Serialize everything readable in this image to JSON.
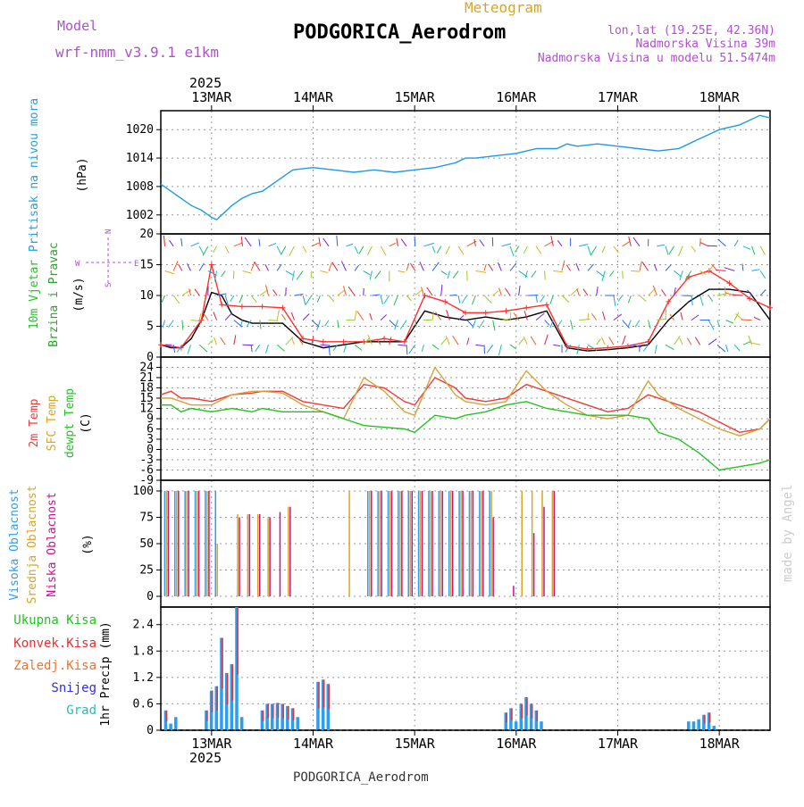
{
  "header": {
    "model_label": "Model",
    "model_name": "wrf-nmm_v3.9.1 e1km",
    "meteogram_label": "Meteogram",
    "station": "PODGORICA_Aerodrom",
    "coords": "lon,lat (19.25E, 42.36N)",
    "elevation": "Nadmorska Visina 39m",
    "model_elevation": "Nadmorska Visina u modelu 51.5474m",
    "year": "2025",
    "footer_station": "PODGORICA_Aerodrom",
    "watermark": "made by Angel"
  },
  "colors": {
    "pressure": "#1e9be0",
    "wind_speed": "#000000",
    "gust": "#ff3030",
    "t2m": "#ee3b3b",
    "sfc": "#d8a23a",
    "dewpt": "#22c422",
    "high_cloud": "#2a9df4",
    "mid_cloud": "#daa520",
    "low_cloud": "#cc1090",
    "total_precip": "#2eb82e",
    "conv_precip": "#e83030",
    "frz_precip": "#f07030",
    "snow": "#3030e0",
    "grad": "#20c0c0",
    "label_pressure": "#1ea0e6",
    "label_wind1": "#22c422",
    "label_wind2": "#22aa22",
    "label_model": "#b24fcf"
  },
  "chart_data": [
    {
      "type": "line",
      "panel": "pressure",
      "ylabel_left": "Pritisak na nivou mora",
      "unit": "(hPa)",
      "x_unit": "days since 2025-03-12 12:00",
      "x_ticks": [
        "13MAR",
        "14MAR",
        "15MAR",
        "16MAR",
        "17MAR",
        "18MAR"
      ],
      "ylim": [
        998,
        1024
      ],
      "y_ticks": [
        1002,
        1008,
        1014,
        1020
      ],
      "grid": true,
      "series": [
        {
          "x": [
            0,
            0.1,
            0.2,
            0.3,
            0.4,
            0.5,
            0.55,
            0.6,
            0.7,
            0.8,
            0.9,
            1.0,
            1.1,
            1.2,
            1.3,
            1.5,
            1.7,
            1.9,
            2.1,
            2.3,
            2.5,
            2.7,
            2.9,
            3.0,
            3.1,
            3.3,
            3.5,
            3.7,
            3.9,
            4.0,
            4.1,
            4.3,
            4.5,
            4.7,
            4.9,
            5.1,
            5.3,
            5.4,
            5.5,
            5.7,
            5.9,
            6.0
          ],
          "values": [
            1008.5,
            1007,
            1005.5,
            1004,
            1003,
            1001.5,
            1001,
            1002,
            1004,
            1005.5,
            1006.5,
            1007,
            1008.5,
            1010,
            1011.5,
            1012,
            1011.5,
            1011,
            1011.5,
            1011,
            1011.5,
            1012,
            1013,
            1014,
            1014,
            1014.5,
            1015,
            1016,
            1016,
            1017,
            1016.5,
            1017,
            1016.5,
            1016,
            1015.5,
            1016,
            1018,
            1019,
            1020,
            1021,
            1023,
            1022.5
          ]
        }
      ]
    },
    {
      "type": "line",
      "panel": "wind",
      "ylabel_left": [
        "10m Vjetar",
        "Brzina i Pravac"
      ],
      "unit": "(m/s)",
      "compass": [
        "N",
        "S",
        "E",
        "W"
      ],
      "ylim": [
        0,
        20
      ],
      "y_ticks": [
        0,
        5,
        10,
        15,
        20
      ],
      "grid": true,
      "series": [
        {
          "name": "speed",
          "x": [
            0,
            0.1,
            0.2,
            0.3,
            0.4,
            0.5,
            0.6,
            0.7,
            0.8,
            0.9,
            1.0,
            1.2,
            1.4,
            1.6,
            1.8,
            2.0,
            2.2,
            2.4,
            2.6,
            2.8,
            3.0,
            3.2,
            3.4,
            3.6,
            3.8,
            4.0,
            4.2,
            4.4,
            4.6,
            4.8,
            5.0,
            5.2,
            5.4,
            5.6,
            5.8,
            6.0
          ],
          "values": [
            2,
            1.5,
            1.5,
            3,
            6,
            10.5,
            10,
            7,
            6,
            5.5,
            5.5,
            5.5,
            2.5,
            1.5,
            2,
            2.5,
            2.5,
            2.5,
            7.5,
            6.5,
            6,
            6.5,
            6,
            6.5,
            7.5,
            1.5,
            1,
            1.2,
            1.5,
            2,
            6,
            9,
            11,
            11,
            10.5,
            6
          ]
        },
        {
          "name": "gust",
          "x": [
            0,
            0.2,
            0.4,
            0.5,
            0.6,
            0.8,
            1.0,
            1.2,
            1.4,
            1.6,
            1.8,
            2.0,
            2.2,
            2.4,
            2.6,
            2.8,
            3.0,
            3.2,
            3.4,
            3.6,
            3.8,
            4.0,
            4.2,
            4.4,
            4.6,
            4.8,
            5.0,
            5.2,
            5.4,
            5.6,
            5.8,
            6.0
          ],
          "values": [
            2,
            1.5,
            6,
            15,
            8.5,
            8.2,
            8.2,
            8,
            3,
            2.5,
            2.5,
            2.5,
            3,
            2.5,
            10,
            9,
            7.2,
            7.2,
            7.5,
            8,
            8.5,
            1.8,
            1.3,
            1.5,
            1.8,
            2.5,
            9,
            13,
            14,
            12,
            9.5,
            8
          ]
        }
      ]
    },
    {
      "type": "line",
      "panel": "temperature",
      "ylabel_left": [
        "2m Temp",
        "SFC Temp",
        "dewpt Temp"
      ],
      "unit": "(C)",
      "ylim": [
        -9,
        27
      ],
      "y_ticks": [
        -9,
        -6,
        -3,
        0,
        3,
        6,
        9,
        12,
        15,
        18,
        21,
        24
      ],
      "grid": true,
      "series": [
        {
          "name": "2m Temp",
          "x": [
            0,
            0.1,
            0.2,
            0.3,
            0.5,
            0.7,
            0.9,
            1.0,
            1.2,
            1.4,
            1.6,
            1.8,
            2.0,
            2.2,
            2.4,
            2.5,
            2.7,
            2.9,
            3.0,
            3.2,
            3.4,
            3.6,
            3.8,
            4.0,
            4.2,
            4.4,
            4.6,
            4.8,
            4.9,
            5.1,
            5.3,
            5.5,
            5.7,
            5.9,
            6.0
          ],
          "values": [
            16,
            17,
            15,
            15,
            14,
            16,
            16.5,
            17,
            17,
            14,
            13,
            12,
            19,
            18,
            14,
            13,
            21,
            18,
            15,
            14,
            15,
            19,
            17,
            15,
            13,
            11,
            12,
            16,
            15,
            13,
            11,
            8,
            5,
            6,
            9
          ]
        },
        {
          "name": "SFC Temp",
          "x": [
            0,
            0.1,
            0.2,
            0.3,
            0.5,
            0.7,
            0.9,
            1.0,
            1.2,
            1.4,
            1.6,
            1.8,
            2.0,
            2.2,
            2.4,
            2.5,
            2.7,
            2.9,
            3.0,
            3.2,
            3.4,
            3.6,
            3.8,
            4.0,
            4.2,
            4.4,
            4.6,
            4.8,
            4.9,
            5.1,
            5.3,
            5.5,
            5.7,
            5.9,
            6.0
          ],
          "values": [
            15,
            15,
            14,
            13,
            13,
            16,
            17,
            17,
            16.5,
            13,
            11,
            9,
            21,
            17,
            11,
            10,
            24,
            16,
            14,
            13,
            14,
            23,
            17,
            13,
            10,
            9,
            10,
            20,
            16,
            12,
            9,
            6,
            4,
            6,
            9
          ]
        },
        {
          "name": "dewpt Temp",
          "x": [
            0,
            0.1,
            0.2,
            0.3,
            0.5,
            0.7,
            0.9,
            1.0,
            1.2,
            1.4,
            1.6,
            1.8,
            2.0,
            2.2,
            2.4,
            2.5,
            2.7,
            2.9,
            3.0,
            3.2,
            3.4,
            3.6,
            3.8,
            4.0,
            4.2,
            4.4,
            4.6,
            4.8,
            4.9,
            5.1,
            5.3,
            5.5,
            5.7,
            5.9,
            6.0
          ],
          "values": [
            13,
            13,
            11,
            12,
            11,
            12,
            11,
            12,
            11,
            11,
            11,
            9,
            7,
            6.5,
            6,
            5,
            10,
            9,
            10,
            11,
            13,
            14,
            12,
            11,
            10,
            10,
            10,
            9,
            5,
            3,
            -1,
            -6,
            -5,
            -4,
            -3
          ]
        }
      ]
    },
    {
      "type": "bar",
      "panel": "cloud",
      "ylabel_left": [
        "Visoka Oblacnost",
        "Srednja Oblacnost",
        "Niska Oblacnost"
      ],
      "unit": "(%)",
      "ylim": [
        0,
        100
      ],
      "y_ticks": [
        0,
        25,
        50,
        75,
        100
      ],
      "grid": true,
      "series": [
        {
          "name": "Visoka Oblacnost",
          "x": [
            0.05,
            0.15,
            0.25,
            0.35,
            0.45,
            0.55,
            0.65,
            0.75,
            0.85,
            0.95,
            1.05,
            1.15,
            1.25,
            1.35,
            1.45,
            1.55,
            1.65,
            1.75,
            1.85,
            2.05,
            2.15,
            2.25,
            2.35,
            2.45,
            2.55,
            2.65,
            2.75,
            2.85,
            2.95,
            3.05,
            3.15,
            3.25,
            3.35,
            3.45,
            3.55,
            3.65,
            3.75,
            3.85
          ],
          "values": [
            100,
            100,
            100,
            100,
            100,
            100,
            0,
            0,
            0,
            0,
            0,
            0,
            0,
            0,
            0,
            0,
            0,
            0,
            0,
            100,
            100,
            100,
            100,
            100,
            100,
            100,
            100,
            100,
            100,
            100,
            100,
            100,
            0,
            0,
            0,
            0,
            0,
            0
          ]
        },
        {
          "name": "Srednja Oblacnost",
          "x": [
            0.05,
            0.15,
            0.25,
            0.35,
            0.45,
            0.55,
            0.65,
            0.75,
            0.85,
            0.95,
            1.05,
            1.15,
            1.25,
            1.35,
            1.45,
            1.55,
            1.65,
            1.75,
            1.85,
            2.05,
            2.15,
            2.25,
            2.35,
            2.45,
            2.55,
            2.65,
            2.75,
            2.85,
            2.95,
            3.05,
            3.15,
            3.25,
            3.35,
            3.45,
            3.55,
            3.65,
            3.75,
            3.85
          ],
          "values": [
            100,
            100,
            100,
            100,
            100,
            50,
            0,
            78,
            78,
            78,
            75,
            0,
            85,
            0,
            0,
            0,
            0,
            0,
            100,
            100,
            100,
            100,
            100,
            100,
            100,
            100,
            100,
            100,
            100,
            100,
            100,
            100,
            0,
            0,
            100,
            100,
            100,
            100
          ]
        },
        {
          "name": "Niska Oblacnost",
          "x": [
            0.05,
            0.15,
            0.25,
            0.35,
            0.45,
            0.55,
            0.65,
            0.75,
            0.85,
            0.95,
            1.05,
            1.15,
            1.25,
            1.35,
            1.45,
            1.55,
            1.65,
            1.75,
            1.85,
            2.05,
            2.15,
            2.25,
            2.35,
            2.45,
            2.55,
            2.65,
            2.75,
            2.85,
            2.95,
            3.05,
            3.15,
            3.25,
            3.35,
            3.45,
            3.55,
            3.65,
            3.75,
            3.85
          ],
          "values": [
            100,
            100,
            100,
            100,
            100,
            0,
            0,
            75,
            78,
            78,
            75,
            80,
            85,
            0,
            0,
            0,
            0,
            0,
            0,
            100,
            100,
            100,
            100,
            100,
            100,
            100,
            100,
            100,
            100,
            100,
            100,
            75,
            0,
            10,
            0,
            60,
            85,
            100
          ]
        }
      ]
    },
    {
      "type": "bar",
      "panel": "precip",
      "ylabel_left": "1hr Precip (mm)",
      "legend": [
        "Ukupna Kisa",
        "Konvek.Kisa",
        "Zaledj.Kisa",
        "Snijeg",
        "Grad"
      ],
      "ylim": [
        0,
        2.8
      ],
      "y_ticks": [
        0,
        0.6,
        1.2,
        1.8,
        2.4
      ],
      "grid": true,
      "series": [
        {
          "name": "Ukupna Kisa",
          "x": [
            0.05,
            0.1,
            0.15,
            0.45,
            0.5,
            0.55,
            0.6,
            0.65,
            0.7,
            0.75,
            0.8,
            0.85,
            1.0,
            1.05,
            1.1,
            1.15,
            1.2,
            1.25,
            1.3,
            1.35,
            1.55,
            1.6,
            1.65,
            3.4,
            3.45,
            3.5,
            3.55,
            3.6,
            3.65,
            3.7,
            3.75,
            5.2,
            5.25,
            5.3,
            5.35,
            5.4,
            5.45,
            5.5
          ],
          "values": [
            0.45,
            0.15,
            0.3,
            0.45,
            0.9,
            1.0,
            2.1,
            1.3,
            1.5,
            2.8,
            0.3,
            0.0,
            0.45,
            0.6,
            0.6,
            0.62,
            0.6,
            0.55,
            0.5,
            0.3,
            1.1,
            1.15,
            1.05,
            0.4,
            0.5,
            0.2,
            0.6,
            0.75,
            0.6,
            0.45,
            0.2,
            0.2,
            0.2,
            0.25,
            0.35,
            0.4,
            0.1,
            0.0
          ]
        }
      ]
    }
  ]
}
